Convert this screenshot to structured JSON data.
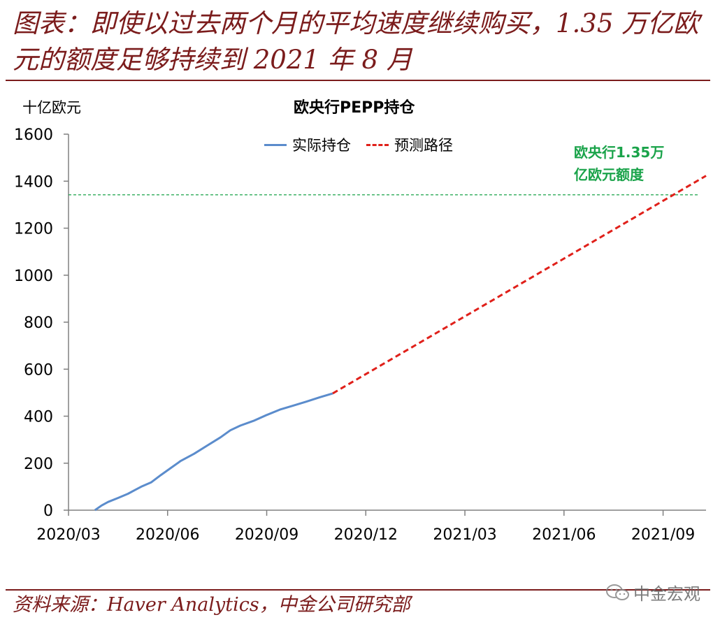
{
  "header": {
    "title": "图表：即使以过去两个月的平均速度继续购买，1.35 万亿欧元的额度足够持续到 2021 年 8 月"
  },
  "footer": {
    "source": "资料来源：Haver Analytics，中金公司研究部",
    "watermark": "中金宏观",
    "watermark_icon": "wechat-icon"
  },
  "colors": {
    "accent": "#7b1c1c",
    "actual": "#5b8ccc",
    "forecast": "#e0201a",
    "limit": "#1aa34a"
  },
  "chart_data": {
    "type": "line",
    "title": "欧央行PEPP持仓",
    "ylabel": "十亿欧元",
    "xlabel": "",
    "ylim": [
      0,
      1600
    ],
    "yticks": [
      0,
      200,
      400,
      600,
      800,
      1000,
      1200,
      1400,
      1600
    ],
    "x_tick_labels": [
      "2020/03",
      "2020/06",
      "2020/09",
      "2020/12",
      "2021/03",
      "2021/06",
      "2021/09"
    ],
    "x_unit": "months since 2020/03",
    "xlim": [
      0,
      19.3
    ],
    "legend_position": "top-center",
    "series": [
      {
        "name": "实际持仓",
        "style": "solid",
        "points": [
          [
            0.8,
            0
          ],
          [
            1.0,
            20
          ],
          [
            1.2,
            35
          ],
          [
            1.5,
            52
          ],
          [
            1.8,
            70
          ],
          [
            2.0,
            85
          ],
          [
            2.2,
            100
          ],
          [
            2.5,
            118
          ],
          [
            2.8,
            150
          ],
          [
            3.1,
            180
          ],
          [
            3.4,
            210
          ],
          [
            3.8,
            240
          ],
          [
            4.2,
            275
          ],
          [
            4.6,
            310
          ],
          [
            4.9,
            340
          ],
          [
            5.2,
            360
          ],
          [
            5.6,
            380
          ],
          [
            6.0,
            405
          ],
          [
            6.4,
            428
          ],
          [
            6.8,
            445
          ],
          [
            7.2,
            462
          ],
          [
            7.6,
            480
          ],
          [
            8.0,
            497
          ]
        ]
      },
      {
        "name": "预测路径",
        "style": "dashed",
        "points": [
          [
            8.0,
            497
          ],
          [
            19.3,
            1423
          ]
        ]
      }
    ],
    "reference_line": {
      "value": 1342,
      "style": "dashed"
    },
    "annotation": {
      "line1": "欧央行1.35万",
      "line2": "亿欧元额度"
    }
  }
}
